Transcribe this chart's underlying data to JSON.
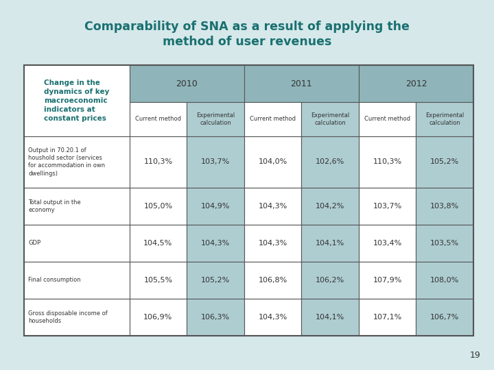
{
  "title_line1": "Comparability of SNA as a result of applying the",
  "title_line2": "method of user revenues",
  "title_color": "#1a7070",
  "background_color": "#d6e8ea",
  "header_year_bg": "#8fb5ba",
  "header_sub_bg": "#aecdd1",
  "text_color": "#333333",
  "teal_text": "#1a7070",
  "border_color": "#555555",
  "col_headers_year": [
    "2010",
    "2011",
    "2012"
  ],
  "col_headers_sub": [
    "Current method",
    "Experimental\ncalculation",
    "Current method",
    "Experimental\ncalculation",
    "Current method",
    "Experimental\ncalculation"
  ],
  "row_label_header": "Change in the\ndynamics of key\nmacroeconomic\nindicators at\nconstant prices",
  "row_labels": [
    "Output in 70.20.1 of\nhoushold sector (services\nfor accommodation in own\ndwellings)",
    "Total output in the\neconomy",
    "GDP",
    "Final consumption",
    "Gross disposable income of\nhouseholds"
  ],
  "data": [
    [
      "110,3%",
      "103,7%",
      "104,0%",
      "102,6%",
      "110,3%",
      "105,2%"
    ],
    [
      "105,0%",
      "104,9%",
      "104,3%",
      "104,2%",
      "103,7%",
      "103,8%"
    ],
    [
      "104,5%",
      "104,3%",
      "104,3%",
      "104,1%",
      "103,4%",
      "103,5%"
    ],
    [
      "105,5%",
      "105,2%",
      "106,8%",
      "106,2%",
      "107,9%",
      "108,0%"
    ],
    [
      "106,9%",
      "106,3%",
      "104,3%",
      "104,1%",
      "107,1%",
      "106,7%"
    ]
  ],
  "page_number": "19"
}
